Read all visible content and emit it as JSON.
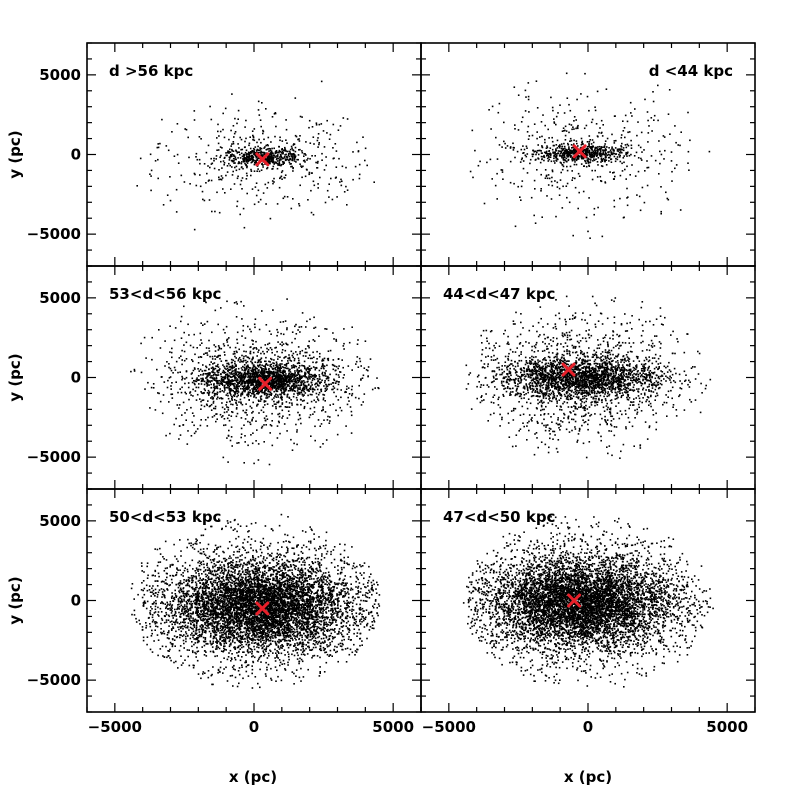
{
  "chart_data": {
    "type": "scatter",
    "layout": "3x2 grid of panels sharing axes",
    "xlabel": "x (pc)",
    "ylabel": "y (pc)",
    "xlim": [
      -6000,
      6000
    ],
    "ylim": [
      -7000,
      7000
    ],
    "x_ticks": [
      -5000,
      0,
      5000
    ],
    "y_ticks": [
      -5000,
      0,
      5000
    ],
    "x_tick_labels": [
      "−5000",
      "0",
      "5000"
    ],
    "y_tick_labels": [
      "−5000",
      "0",
      "5000"
    ],
    "grid": false,
    "point_color": "#000000",
    "marker_color": "#e8202a",
    "marker_symbol": "x",
    "panels": [
      {
        "label": "d >56 kpc",
        "label_position": "top-left",
        "row": 0,
        "col": 0,
        "marker": [
          300,
          -300
        ],
        "approx_point_count": 900,
        "distribution": {
          "core_center": [
            300,
            -150
          ],
          "core_sigma": [
            700,
            300
          ],
          "halo_sigma": [
            1800,
            1600
          ]
        }
      },
      {
        "label": "d <44 kpc",
        "label_position": "top-right",
        "row": 0,
        "col": 1,
        "marker": [
          -300,
          200
        ],
        "approx_point_count": 1000,
        "distribution": {
          "core_center": [
            -300,
            100
          ],
          "core_sigma": [
            800,
            300
          ],
          "halo_sigma": [
            2100,
            2100
          ]
        }
      },
      {
        "label": "53<d<56 kpc",
        "label_position": "top-left",
        "row": 1,
        "col": 0,
        "marker": [
          400,
          -400
        ],
        "approx_point_count": 2600,
        "distribution": {
          "core_center": [
            300,
            -100
          ],
          "core_sigma": [
            1100,
            500
          ],
          "halo_sigma": [
            2000,
            1900
          ]
        }
      },
      {
        "label": "44<d<47 kpc",
        "label_position": "top-left",
        "row": 1,
        "col": 1,
        "marker": [
          -700,
          500
        ],
        "approx_point_count": 3000,
        "distribution": {
          "core_center": [
            -300,
            0
          ],
          "core_sigma": [
            1300,
            600
          ],
          "halo_sigma": [
            2000,
            2000
          ]
        }
      },
      {
        "label": "50<d<53 kpc",
        "label_position": "top-left",
        "row": 2,
        "col": 0,
        "marker": [
          300,
          -500
        ],
        "approx_point_count": 7000,
        "distribution": {
          "core_center": [
            200,
            -300
          ],
          "core_sigma": [
            1500,
            1200
          ],
          "halo_sigma": [
            2300,
            2100
          ]
        }
      },
      {
        "label": "47<d<50 kpc",
        "label_position": "top-left",
        "row": 2,
        "col": 1,
        "marker": [
          -500,
          0
        ],
        "approx_point_count": 7000,
        "distribution": {
          "core_center": [
            -300,
            -100
          ],
          "core_sigma": [
            1500,
            1200
          ],
          "halo_sigma": [
            2200,
            2100
          ]
        }
      }
    ]
  }
}
